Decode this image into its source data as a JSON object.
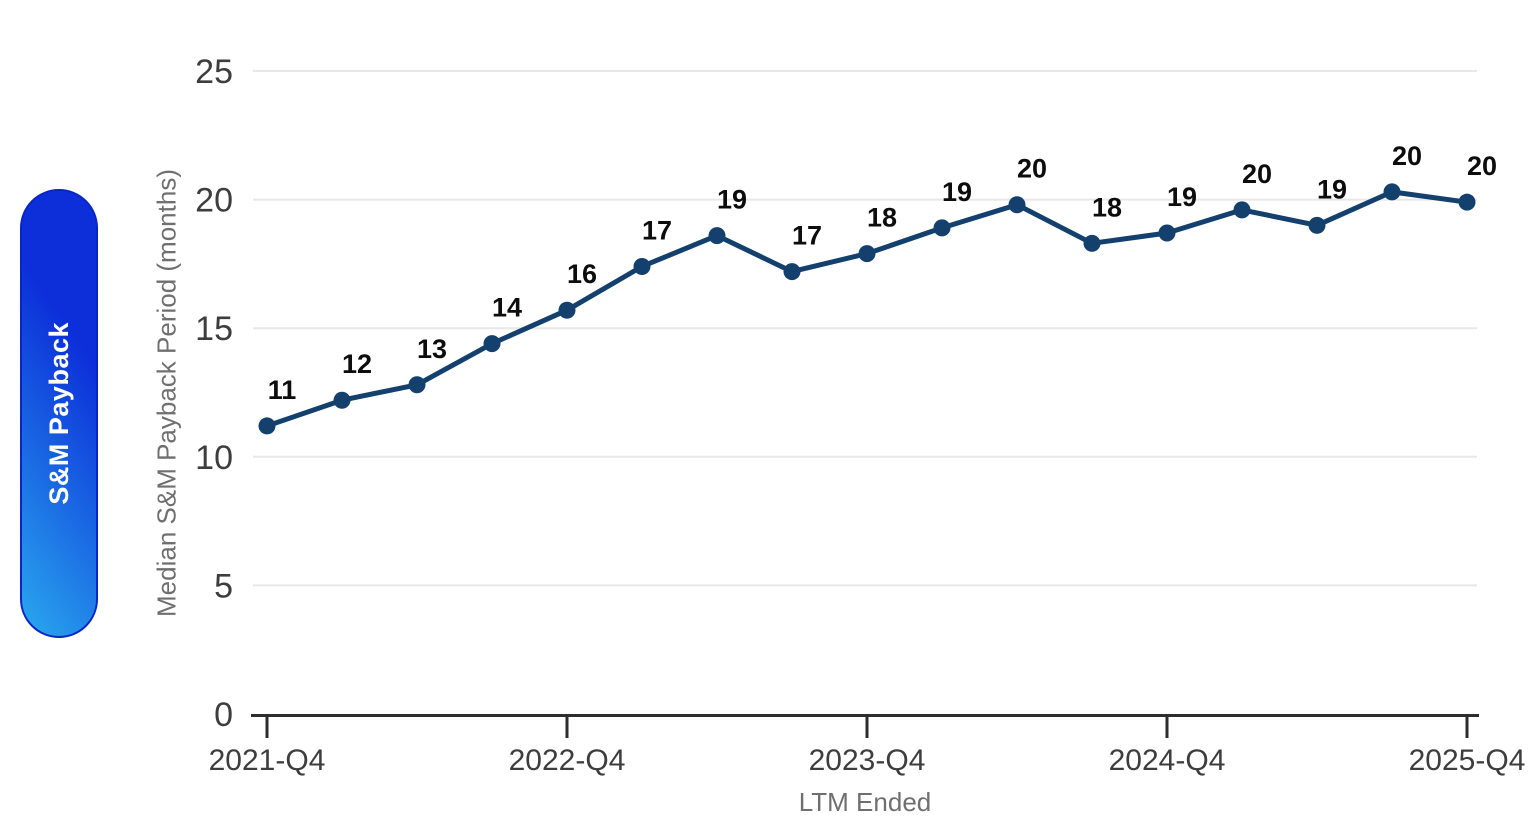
{
  "badge": {
    "label": "S&M Payback"
  },
  "colors": {
    "line": "#14406e",
    "grid": "#e8e8e8",
    "axis": "#2d2d2d",
    "tick_label": "#3d3d3d",
    "data_label": "#0d0d0d",
    "axis_title": "#6f6f6f",
    "badge_gradient_start": "#2aa9ee",
    "badge_gradient_end": "#0c2fd9",
    "badge_border": "#0a25c6",
    "badge_text": "#ffffff"
  },
  "chart_data": {
    "type": "line",
    "title": "",
    "xlabel": "LTM Ended",
    "ylabel": "Median S&M Payback Period (months)",
    "ylim": [
      0,
      25
    ],
    "y_ticks": [
      0,
      5,
      10,
      15,
      20,
      25
    ],
    "x_ticks": [
      {
        "at": 0,
        "label": "2021-Q4"
      },
      {
        "at": 4,
        "label": "2022-Q4"
      },
      {
        "at": 8,
        "label": "2023-Q4"
      },
      {
        "at": 12,
        "label": "2024-Q4"
      },
      {
        "at": 16,
        "label": "2025-Q4"
      }
    ],
    "grid": "horizontal-only",
    "legend": "none",
    "series": [
      {
        "name": "S&M Payback",
        "points": [
          {
            "x_index": 0,
            "value": 11.2,
            "label": "11"
          },
          {
            "x_index": 1,
            "value": 12.2,
            "label": "12"
          },
          {
            "x_index": 2,
            "value": 12.8,
            "label": "13"
          },
          {
            "x_index": 3,
            "value": 14.4,
            "label": "14"
          },
          {
            "x_index": 4,
            "value": 15.7,
            "label": "16"
          },
          {
            "x_index": 5,
            "value": 17.4,
            "label": "17"
          },
          {
            "x_index": 6,
            "value": 18.6,
            "label": "19"
          },
          {
            "x_index": 7,
            "value": 17.2,
            "label": "17"
          },
          {
            "x_index": 8,
            "value": 17.9,
            "label": "18"
          },
          {
            "x_index": 9,
            "value": 18.9,
            "label": "19"
          },
          {
            "x_index": 10,
            "value": 19.8,
            "label": "20"
          },
          {
            "x_index": 11,
            "value": 18.3,
            "label": "18"
          },
          {
            "x_index": 12,
            "value": 18.7,
            "label": "19"
          },
          {
            "x_index": 13,
            "value": 19.6,
            "label": "20"
          },
          {
            "x_index": 14,
            "value": 19.0,
            "label": "19"
          },
          {
            "x_index": 15,
            "value": 20.3,
            "label": "20"
          },
          {
            "x_index": 16,
            "value": 19.9,
            "label": "20"
          }
        ]
      }
    ]
  }
}
